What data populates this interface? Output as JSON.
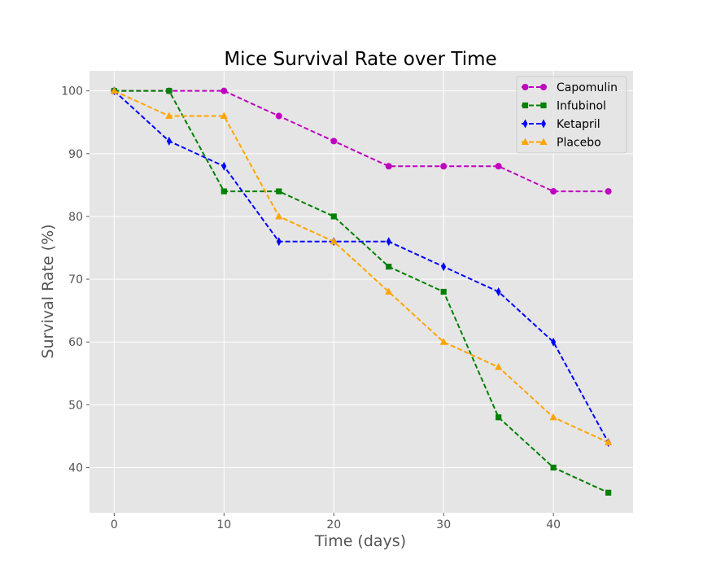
{
  "chart_data": {
    "type": "line",
    "title": "Mice Survival Rate over Time",
    "xlabel": "Time (days)",
    "ylabel": "Survival Rate (%)",
    "xlim": [
      -2.25,
      47.25
    ],
    "ylim": [
      32.8,
      103.2
    ],
    "x_ticks": [
      0,
      10,
      20,
      30,
      40
    ],
    "y_ticks": [
      40,
      50,
      60,
      70,
      80,
      90,
      100
    ],
    "grid": true,
    "legend_position": "top-right",
    "x": [
      0,
      5,
      10,
      15,
      20,
      25,
      30,
      35,
      40,
      45
    ],
    "series": [
      {
        "name": "Capomulin",
        "marker": "circle",
        "color": "#bf00bf",
        "linestyle": "dashed",
        "values": [
          100,
          100,
          100,
          96,
          92,
          88,
          88,
          88,
          84,
          84
        ]
      },
      {
        "name": "Infubinol",
        "marker": "square",
        "color": "#008000",
        "linestyle": "dashed",
        "values": [
          100,
          100,
          84,
          84,
          80,
          72,
          68,
          48,
          40,
          36
        ]
      },
      {
        "name": "Ketapril",
        "marker": "thin-diamond",
        "color": "#0000ff",
        "linestyle": "dashed",
        "values": [
          100,
          92,
          88,
          76,
          76,
          76,
          72,
          68,
          60,
          44
        ]
      },
      {
        "name": "Placebo",
        "marker": "triangle",
        "color": "#ffa500",
        "linestyle": "dashed",
        "values": [
          100,
          96,
          96,
          80,
          76,
          68,
          60,
          56,
          48,
          44
        ]
      }
    ]
  },
  "style": {
    "plot_background": "#e5e5e5",
    "grid_color": "#ffffff",
    "text_color": "#555555",
    "title_color": "#000000"
  }
}
